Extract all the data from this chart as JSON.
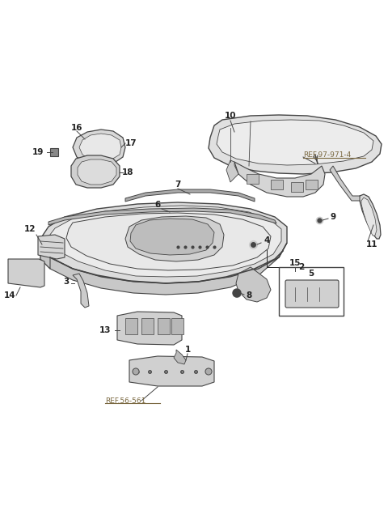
{
  "bg_color": "#ffffff",
  "line_color": "#444444",
  "label_color": "#222222",
  "ref_color": "#7a6840",
  "fig_width": 4.8,
  "fig_height": 6.56,
  "dpi": 100,
  "label_fs": 7.5,
  "ref_fs": 6.5
}
